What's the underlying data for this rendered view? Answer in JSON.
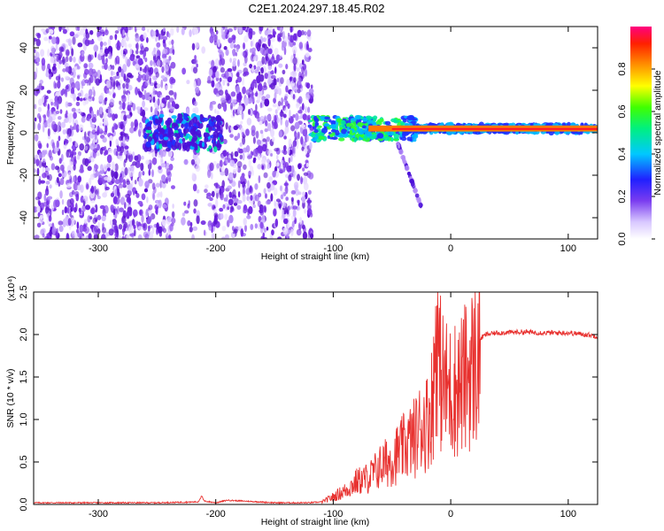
{
  "title": "C2E1.2024.297.18.45.R02",
  "colors": {
    "snr_line": "#e8312f",
    "axes": "#000000"
  },
  "chart_data": [
    {
      "type": "heatmap",
      "xlabel": "Height of straight line (km)",
      "ylabel": "Frequency (Hz)",
      "xlim": [
        -355,
        125
      ],
      "ylim": [
        -50,
        50
      ],
      "x_ticks": [
        -300,
        -200,
        -100,
        0,
        100
      ],
      "y_ticks": [
        -40,
        -20,
        0,
        20,
        40
      ],
      "colorbar": {
        "label": "Normalized spectral amplitude",
        "range": [
          0.0,
          1.0
        ],
        "ticks": [
          "0.0",
          "0.2",
          "0.4",
          "0.6",
          "0.8"
        ]
      },
      "regions": [
        {
          "desc": "broadband scattered noise",
          "x": [
            -355,
            -118
          ],
          "y": [
            -50,
            50
          ]
        },
        {
          "desc": "low-frequency band",
          "x": [
            -260,
            -195
          ],
          "y": [
            -8,
            8
          ]
        },
        {
          "desc": "signal band",
          "x": [
            -120,
            125
          ],
          "y": [
            -3,
            8
          ]
        },
        {
          "desc": "strong narrow line",
          "x": [
            -70,
            125
          ],
          "y": [
            1,
            3
          ]
        },
        {
          "desc": "falling tail",
          "x": [
            -45,
            -25
          ],
          "y": [
            -35,
            -5
          ]
        }
      ]
    },
    {
      "type": "line",
      "xlabel": "Height of straight line (km)",
      "ylabel": "SNR (10 * v/v)",
      "y_multiplier": "(x10⁴)",
      "xlim": [
        -355,
        125
      ],
      "ylim": [
        0,
        2.5
      ],
      "x_ticks": [
        -300,
        -200,
        -100,
        0,
        100
      ],
      "y_ticks": [
        "0.0",
        "0.5",
        "1.0",
        "1.5",
        "2.0",
        "2.5"
      ],
      "series": [
        {
          "x": [
            -355,
            -300,
            -250,
            -215,
            -212,
            -210,
            -200,
            -190,
            -150,
            -120,
            -110,
            -100,
            -90,
            -80,
            -70,
            -60,
            -50,
            -40,
            -30,
            -25,
            -20,
            -15,
            -12,
            -10,
            -5,
            0,
            5,
            10,
            15,
            20,
            25,
            30,
            40,
            60,
            80,
            100,
            115,
            125
          ],
          "y": [
            0.02,
            0.02,
            0.02,
            0.03,
            0.1,
            0.04,
            0.02,
            0.05,
            0.02,
            0.02,
            0.03,
            0.1,
            0.18,
            0.3,
            0.35,
            0.5,
            0.6,
            0.75,
            0.9,
            1.05,
            1.1,
            1.4,
            2.5,
            1.8,
            1.55,
            1.5,
            1.55,
            1.6,
            1.75,
            1.85,
            1.95,
            2.0,
            2.02,
            2.03,
            2.02,
            2.02,
            2.0,
            1.98
          ]
        }
      ]
    }
  ]
}
